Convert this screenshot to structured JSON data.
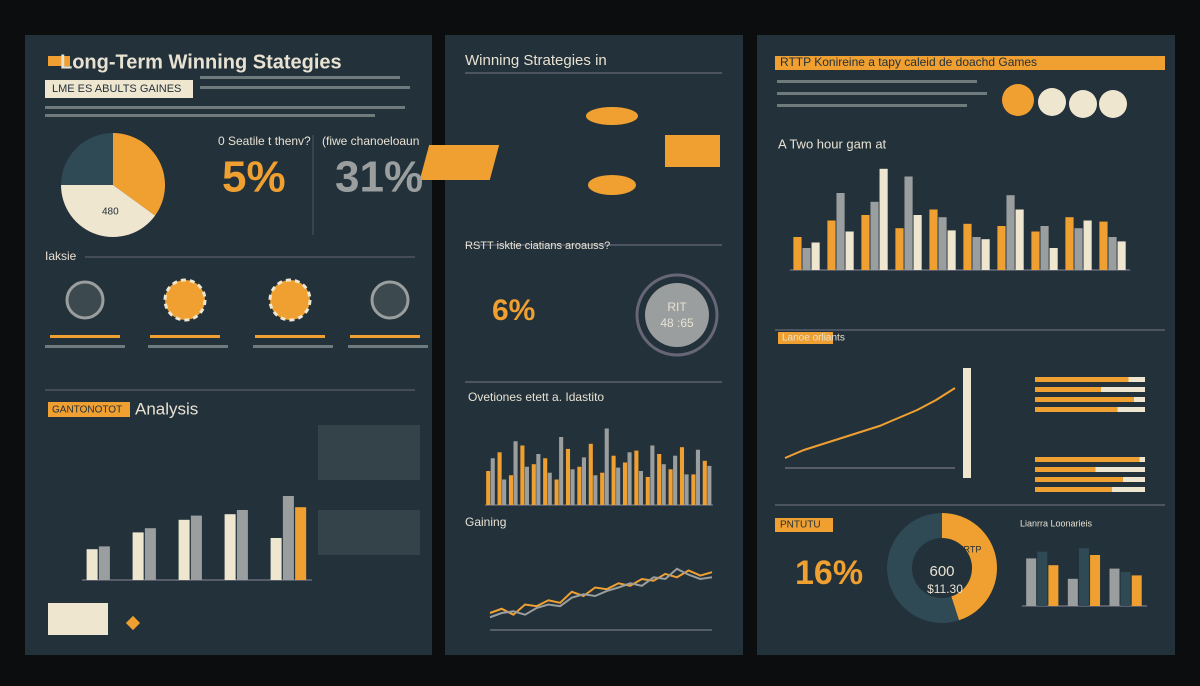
{
  "panels": [
    {
      "title": "Long-Term Winning Stategies",
      "badge": "LME ES ABULTS GAINES",
      "stats": [
        {
          "label": "0 Seatile t thenv?",
          "value": "5%"
        },
        {
          "label": "(fiwe chanoeloaun",
          "value": "31%"
        }
      ],
      "pie_label": "480",
      "section": "Iaksie",
      "analysis_badge": "GANTONOTOT",
      "analysis_title": "Analysis"
    },
    {
      "title": "Winning Strategies in",
      "question": "RSTT isktie ciatians aroauss?",
      "stat": "6%",
      "gauge_label": "RIT",
      "gauge_value": "48 :65",
      "chart_title": "Ovetiones etett a. Idastito",
      "line_title": "Gaining"
    },
    {
      "title": "RTTP Konireine a tapy caleid de doachd Games",
      "subtitle": "A Two hour gam at",
      "badge": "Lanoe orliants",
      "badge2": "PNTUTU",
      "stat": "16%",
      "donut_top": "TRTP",
      "donut_value": "600",
      "donut_amount": "$11.30",
      "bars_title": "Lianrra Loonarieis"
    }
  ],
  "charts": [
    {
      "type": "pie",
      "values": [
        35,
        40,
        25
      ],
      "colors": [
        "#f0a030",
        "#efe6d0",
        "#2f4a55"
      ]
    },
    {
      "type": "bar",
      "ylim": [
        0,
        100
      ],
      "series": [
        {
          "color": "#efe6d0",
          "values": [
            22,
            34,
            43,
            47,
            30
          ]
        },
        {
          "color": "#9a9e9e",
          "values": [
            24,
            37,
            46,
            50,
            60
          ]
        },
        {
          "color": "#f0a030",
          "values": [
            null,
            null,
            null,
            null,
            52
          ]
        }
      ]
    },
    {
      "type": "bar",
      "ylim": [
        0,
        100
      ],
      "series": [
        {
          "color": "#f0a030",
          "values": [
            40,
            62,
            35,
            70,
            48,
            55,
            30,
            66,
            45,
            72,
            38,
            58,
            50,
            64,
            33,
            60,
            42,
            68,
            36,
            52
          ]
        },
        {
          "color": "#9a9e9e",
          "values": [
            55,
            30,
            75,
            45,
            60,
            38,
            80,
            42,
            56,
            35,
            90,
            44,
            62,
            40,
            70,
            48,
            58,
            36,
            65,
            46
          ]
        }
      ]
    },
    {
      "type": "line",
      "ylim": [
        0,
        100
      ],
      "series": [
        {
          "color": "#f0a030",
          "values": [
            20,
            25,
            18,
            30,
            28,
            35,
            32,
            45,
            40,
            50,
            48,
            55,
            52,
            60,
            58,
            66,
            62,
            70,
            64,
            68
          ]
        },
        {
          "color": "#9a9e9e",
          "values": [
            15,
            20,
            22,
            18,
            26,
            30,
            28,
            38,
            42,
            40,
            46,
            50,
            55,
            52,
            62,
            60,
            72,
            65,
            60,
            62
          ]
        }
      ]
    },
    {
      "type": "bar",
      "ylim": [
        0,
        100
      ],
      "series": [
        {
          "color": "#f0a030",
          "values": [
            30,
            45,
            50,
            38,
            55,
            42,
            40,
            35,
            48,
            44
          ]
        },
        {
          "color": "#9a9e9e",
          "values": [
            20,
            70,
            62,
            85,
            48,
            30,
            68,
            40,
            38,
            30
          ]
        },
        {
          "color": "#efe6d0",
          "values": [
            25,
            35,
            92,
            50,
            36,
            28,
            55,
            20,
            45,
            26
          ]
        }
      ]
    },
    {
      "type": "line",
      "ylim": [
        0,
        100
      ],
      "series": [
        {
          "color": "#f0a030",
          "values": [
            10,
            18,
            24,
            30,
            36,
            42,
            50,
            58,
            68,
            80
          ]
        }
      ]
    },
    {
      "type": "hbar",
      "xlim": [
        0,
        100
      ],
      "series": [
        {
          "color": "#f0a030",
          "values": [
            85,
            60,
            90,
            75,
            95,
            55,
            80,
            70
          ]
        }
      ]
    },
    {
      "type": "donut",
      "values": [
        45,
        55
      ],
      "colors": [
        "#f0a030",
        "#2f4a55"
      ]
    },
    {
      "type": "bar",
      "ylim": [
        0,
        100
      ],
      "series": [
        {
          "color": "#9a9e9e",
          "values": [
            70,
            40,
            55
          ]
        },
        {
          "color": "#2f4a55",
          "values": [
            80,
            85,
            50
          ]
        },
        {
          "color": "#f0a030",
          "values": [
            60,
            75,
            45
          ]
        }
      ]
    }
  ]
}
